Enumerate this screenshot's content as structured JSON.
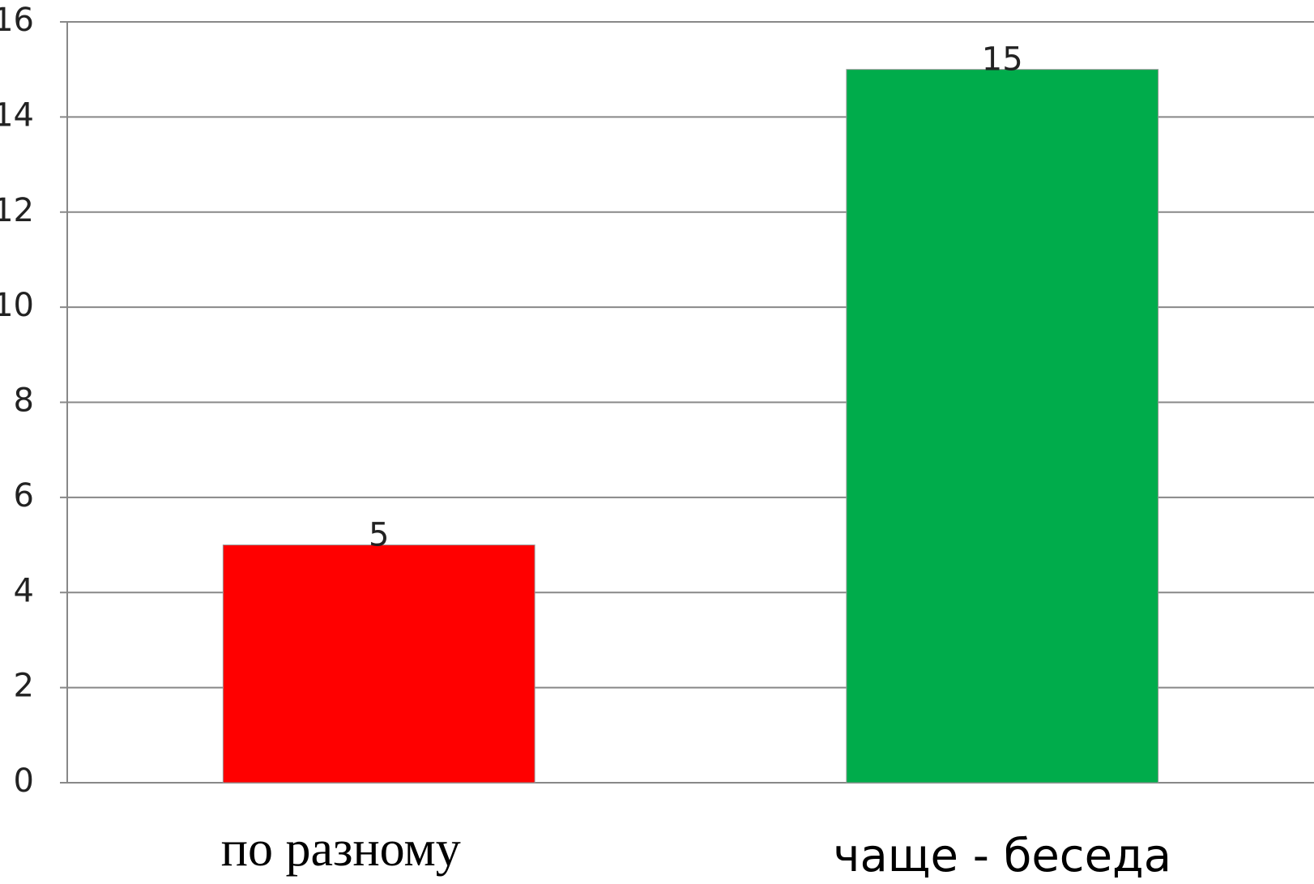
{
  "chart_data": {
    "type": "bar",
    "categories": [
      "по разному",
      "чаще - беседа"
    ],
    "values": [
      5,
      15
    ],
    "colors": [
      "#ff0000",
      "#00ac4b"
    ],
    "ylim": [
      0,
      16
    ],
    "yticks": [
      0,
      2,
      4,
      6,
      8,
      10,
      12,
      14,
      16
    ],
    "grid": true
  }
}
